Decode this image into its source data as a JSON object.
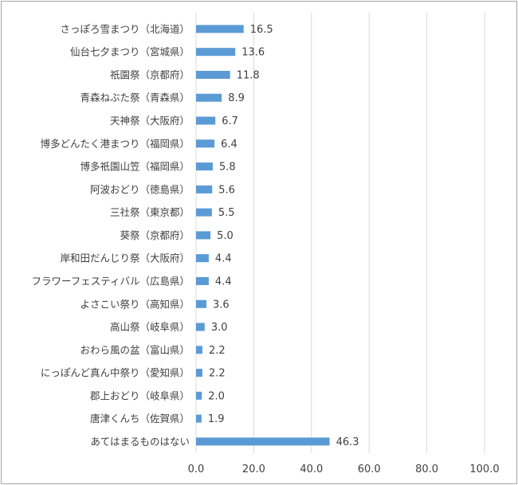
{
  "chart_data": {
    "type": "bar",
    "orientation": "horizontal",
    "categories": [
      "さっぽろ雪まつり（北海道）",
      "仙台七夕まつり（宮城県）",
      "祇園祭（京都府）",
      "青森ねぶた祭（青森県）",
      "天神祭（大阪府）",
      "博多どんたく港まつり（福岡県）",
      "博多祇園山笠（福岡県）",
      "阿波おどり（徳島県）",
      "三社祭（東京都）",
      "葵祭（京都府）",
      "岸和田だんじり祭（大阪府）",
      "フラワーフェスティバル（広島県）",
      "よさこい祭り（高知県）",
      "高山祭（岐阜県）",
      "おわら風の盆（富山県）",
      "にっぽんど真ん中祭り（愛知県）",
      "郡上おどり（岐阜県）",
      "唐津くんち（佐賀県）",
      "あてはまるものはない"
    ],
    "values": [
      16.5,
      13.6,
      11.8,
      8.9,
      6.7,
      6.4,
      5.8,
      5.6,
      5.5,
      5.0,
      4.4,
      4.4,
      3.6,
      3.0,
      2.2,
      2.2,
      2.0,
      1.9,
      46.3
    ],
    "value_labels": [
      "16.5",
      "13.6",
      "11.8",
      "8.9",
      "6.7",
      "6.4",
      "5.8",
      "5.6",
      "5.5",
      "5.0",
      "4.4",
      "4.4",
      "3.6",
      "3.0",
      "2.2",
      "2.2",
      "2.0",
      "1.9",
      "46.3"
    ],
    "xlim": [
      0,
      100
    ],
    "x_ticks": [
      "0.0",
      "20.0",
      "40.0",
      "60.0",
      "80.0",
      "100.0"
    ],
    "grid": true,
    "bar_color": "#5b9bd5",
    "grid_color": "#d9d9d9",
    "title": "",
    "xlabel": "",
    "ylabel": ""
  }
}
